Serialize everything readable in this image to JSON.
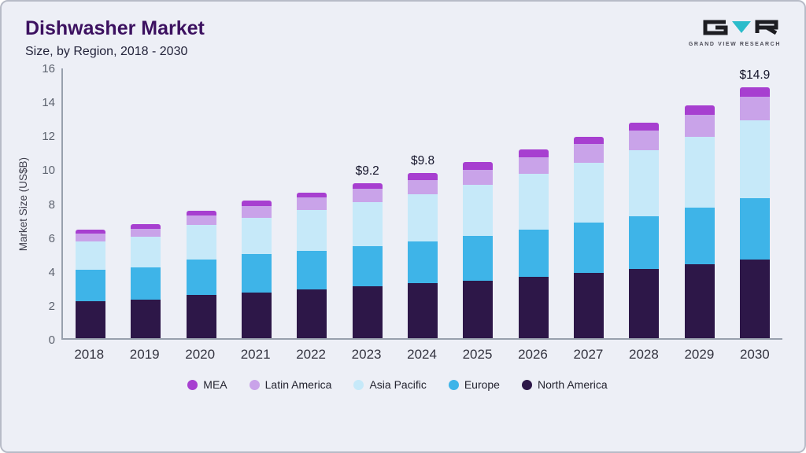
{
  "header": {
    "title": "Dishwasher Market",
    "subtitle": "Size, by Region, 2018 - 2030"
  },
  "logo": {
    "caption": "GRAND VIEW RESEARCH",
    "accent_color": "#2bbccb",
    "dark_color": "#1d1d22"
  },
  "chart_data": {
    "type": "bar",
    "stacked": true,
    "title": "Dishwasher Market Size, by Region, 2018 - 2030",
    "ylabel": "Market Size (US$B)",
    "ylim": [
      0,
      16
    ],
    "yticks": [
      0,
      2,
      4,
      6,
      8,
      10,
      12,
      14,
      16
    ],
    "grid": false,
    "legend_position": "bottom",
    "categories": [
      "2018",
      "2019",
      "2020",
      "2021",
      "2022",
      "2023",
      "2024",
      "2025",
      "2026",
      "2027",
      "2028",
      "2029",
      "2030"
    ],
    "series": [
      {
        "name": "North America",
        "color": "#2d1748",
        "values": [
          2.2,
          2.3,
          2.55,
          2.7,
          2.9,
          3.1,
          3.25,
          3.4,
          3.65,
          3.85,
          4.1,
          4.4,
          4.65
        ]
      },
      {
        "name": "Europe",
        "color": "#3eb4e8",
        "values": [
          1.85,
          1.9,
          2.1,
          2.3,
          2.3,
          2.35,
          2.5,
          2.65,
          2.8,
          3.0,
          3.15,
          3.35,
          3.65
        ]
      },
      {
        "name": "Asia Pacific",
        "color": "#c6e9f9",
        "values": [
          1.7,
          1.8,
          2.05,
          2.15,
          2.4,
          2.6,
          2.8,
          3.05,
          3.3,
          3.55,
          3.9,
          4.2,
          4.6
        ]
      },
      {
        "name": "Latin America",
        "color": "#c9a3e9",
        "values": [
          0.45,
          0.5,
          0.6,
          0.7,
          0.75,
          0.8,
          0.85,
          0.9,
          1.0,
          1.1,
          1.15,
          1.3,
          1.4
        ]
      },
      {
        "name": "MEA",
        "color": "#a73fd0",
        "values": [
          0.25,
          0.25,
          0.25,
          0.3,
          0.3,
          0.35,
          0.4,
          0.45,
          0.45,
          0.45,
          0.5,
          0.55,
          0.6
        ]
      }
    ],
    "totals": [
      6.45,
      6.75,
      7.55,
      8.15,
      8.65,
      9.2,
      9.8,
      10.45,
      11.2,
      11.95,
      12.8,
      13.8,
      14.9
    ],
    "annotations": {
      "2023": "$9.2",
      "2024": "$9.8",
      "2030": "$14.9"
    },
    "legend_order": [
      "MEA",
      "Latin America",
      "Asia Pacific",
      "Europe",
      "North America"
    ]
  }
}
